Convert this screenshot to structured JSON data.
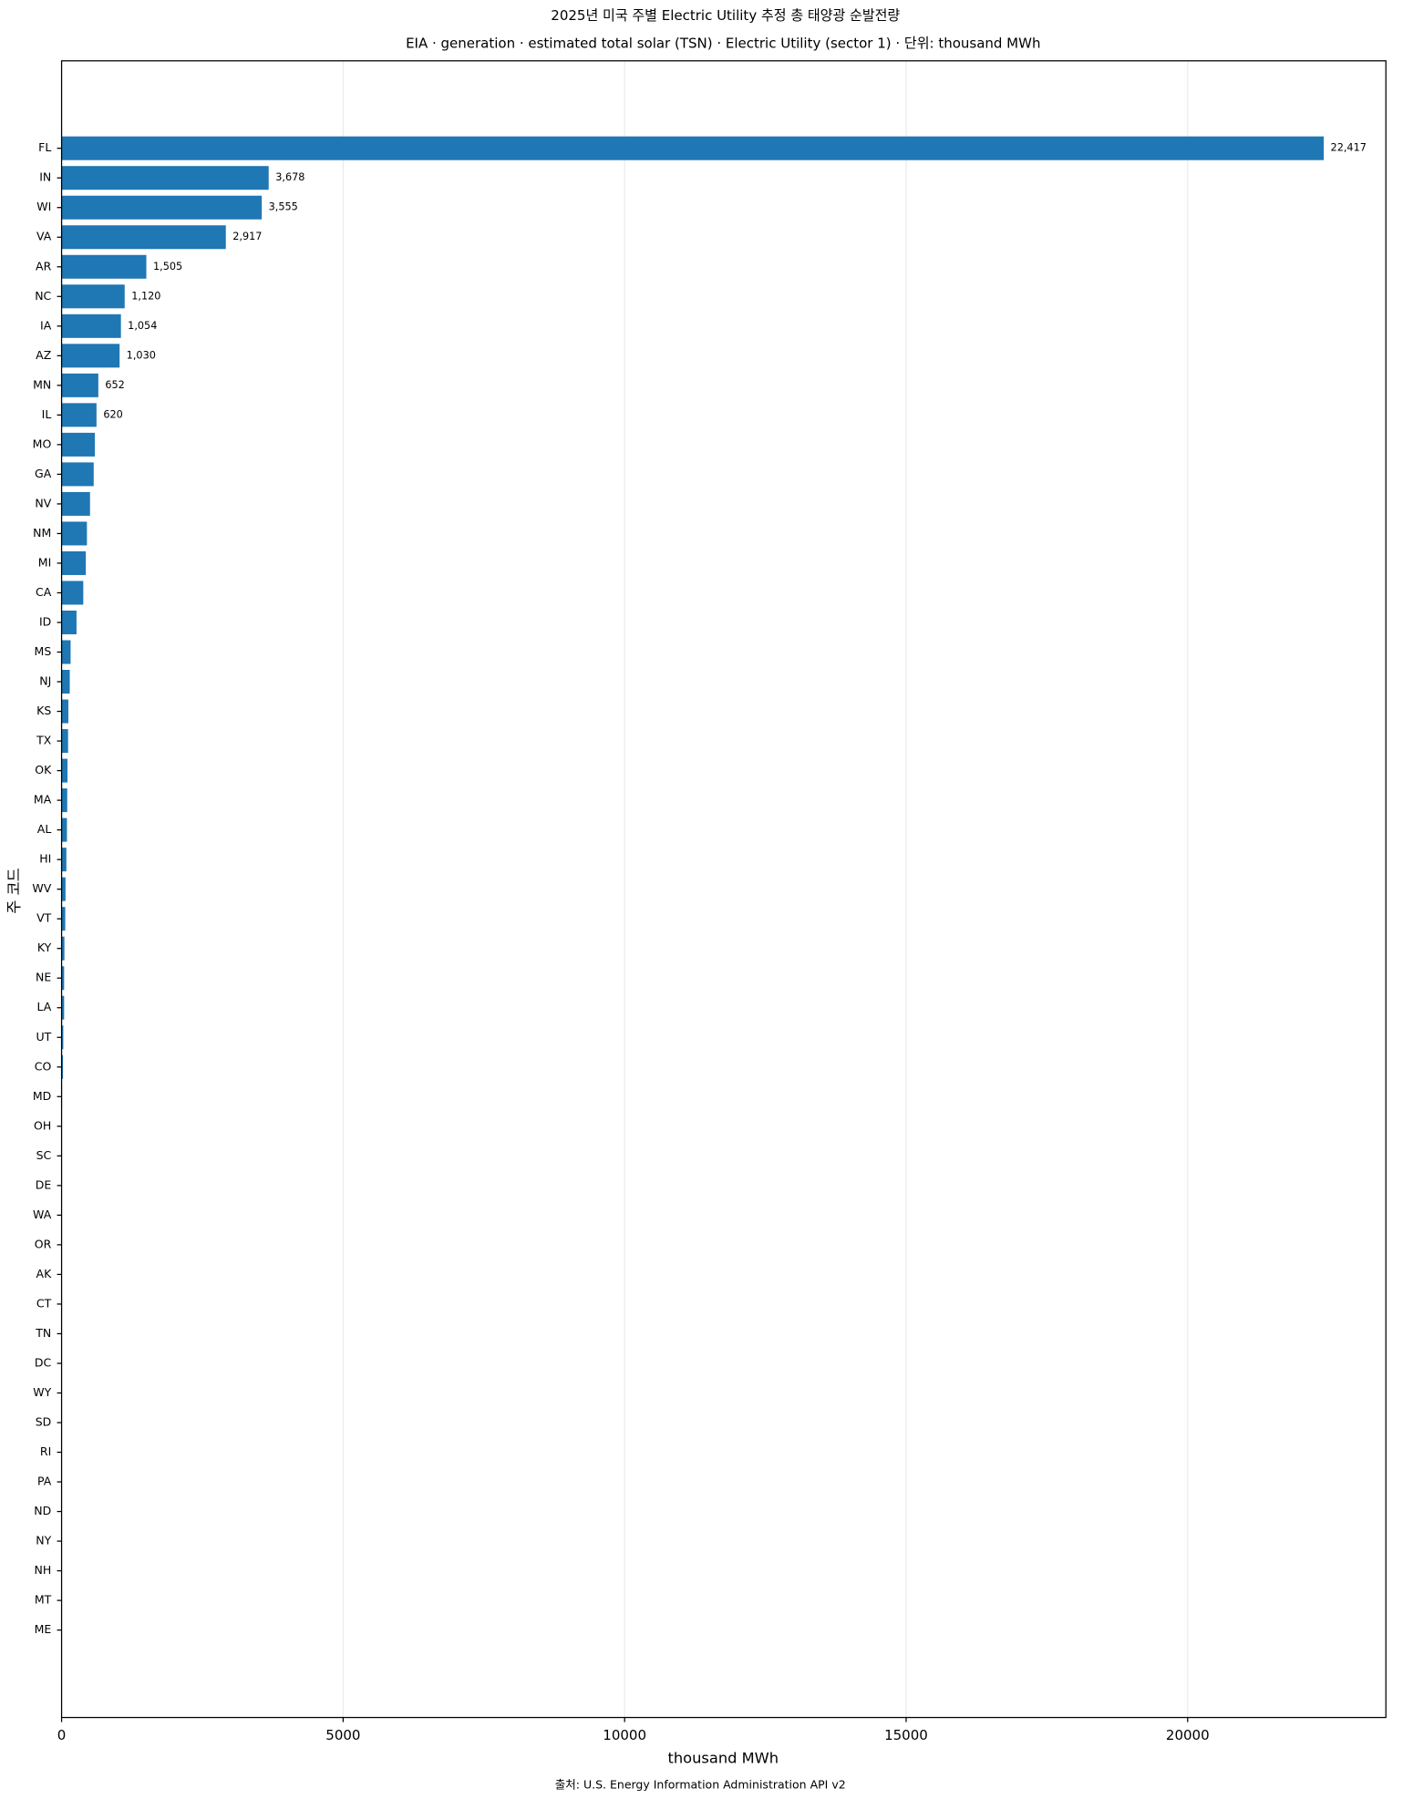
{
  "chart_data": {
    "type": "barh",
    "title": "2025년 미국 주별 Electric Utility 추정 총 태양광 순발전량",
    "subtitle": "EIA · generation · estimated total solar (TSN) · Electric Utility (sector 1) · 단위: thousand MWh",
    "x_label": "thousand MWh",
    "y_label": "주 코드",
    "source": "출처: U.S. Energy Information Administration API v2",
    "categories": [
      "FL",
      "IN",
      "WI",
      "VA",
      "AR",
      "NC",
      "IA",
      "AZ",
      "MN",
      "IL",
      "MO",
      "GA",
      "NV",
      "NM",
      "MI",
      "CA",
      "ID",
      "MS",
      "NJ",
      "KS",
      "TX",
      "OK",
      "MA",
      "AL",
      "HI",
      "WV",
      "VT",
      "KY",
      "NE",
      "LA",
      "UT",
      "CO",
      "MD",
      "OH",
      "SC",
      "DE",
      "WA",
      "OR",
      "AK",
      "CT",
      "TN",
      "DC",
      "WY",
      "SD",
      "RI",
      "PA",
      "ND",
      "NY",
      "NH",
      "MT",
      "ME"
    ],
    "values": [
      22417,
      3678,
      3555,
      2917,
      1505,
      1120,
      1054,
      1030,
      652,
      620,
      590,
      570,
      505,
      450,
      430,
      385,
      265,
      160,
      145,
      120,
      115,
      105,
      100,
      95,
      85,
      70,
      65,
      50,
      45,
      45,
      30,
      25,
      8,
      6,
      5,
      4,
      3,
      3,
      2,
      2,
      1,
      1,
      1,
      1,
      0,
      0,
      0,
      0,
      0,
      0,
      0
    ],
    "value_labels": [
      "22,417",
      "3,678",
      "3,555",
      "2,917",
      "1,505",
      "1,120",
      "1,054",
      "1,030",
      "652",
      "620",
      null,
      null,
      null,
      null,
      null,
      null,
      null,
      null,
      null,
      null,
      null,
      null,
      null,
      null,
      null,
      null,
      null,
      null,
      null,
      null,
      null,
      null,
      null,
      null,
      null,
      null,
      null,
      null,
      null,
      null,
      null,
      null,
      null,
      null,
      null,
      null,
      null,
      null,
      null,
      null,
      null
    ],
    "color": "#1f77b4",
    "xlim": [
      0,
      23521
    ],
    "xticks": [
      0,
      5000,
      10000,
      15000,
      20000
    ],
    "grid": true
  }
}
